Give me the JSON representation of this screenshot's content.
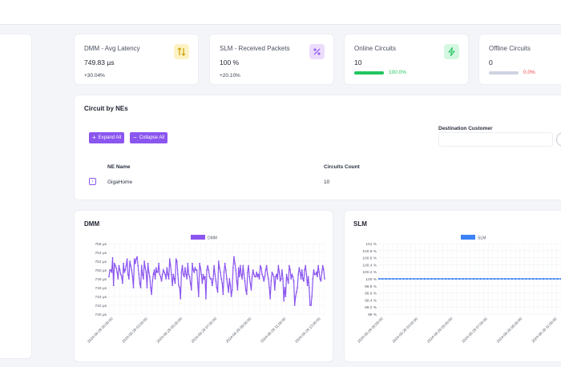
{
  "kpis": [
    {
      "title": "DMM - Avg Latency",
      "value": "749.83 µs",
      "delta": "+30.04%",
      "icon": "arrows-up-down-icon",
      "icon_bg": "#fdf2c4",
      "icon_color": "#c9a000"
    },
    {
      "title": "SLM - Received Packets",
      "value": "100 %",
      "delta": "+20.10%",
      "icon": "percent-icon",
      "icon_bg": "#ecdcfc",
      "icon_color": "#8b55ef"
    },
    {
      "title": "Online Circuits",
      "value": "10",
      "bar_label": "100.0%",
      "bar_progress": 1.0,
      "bar_color": "#22c55e",
      "label_color": "#22c55e",
      "icon": "lightning-icon",
      "icon_bg": "#d4f7e2",
      "icon_color": "#22c55e"
    },
    {
      "title": "Offline Circuits",
      "value": "0",
      "bar_label": "0.0%",
      "bar_progress": 0.0,
      "bar_color": "#cdd3e0",
      "label_color": "#ef4444"
    }
  ],
  "circuits": {
    "title": "Circuit by NEs",
    "expand_label": "Expand All",
    "collapse_label": "Collapse All",
    "destination_label": "Destination Customer",
    "columns": [
      "NE Name",
      "Circuits Count"
    ],
    "rows": [
      {
        "ne": "GigaHome",
        "count": "10"
      }
    ]
  },
  "dmm": {
    "title": "DMM",
    "chart_data": {
      "type": "line",
      "legend": "DMM",
      "color": "#8b55ef",
      "ylim": [
        740,
        756
      ],
      "yticks": [
        "756 µs",
        "754 µs",
        "752 µs",
        "750 µs",
        "748 µs",
        "746 µs",
        "744 µs",
        "742 µs",
        "740 µs"
      ],
      "xticks": [
        "2024-08-29 00:00:00",
        "2024-08-29 03:00:00",
        "2024-08-29 05:00:00",
        "2024-08-29 07:00:00",
        "2024-08-29 09:00:00",
        "2024-08-29 11:00:00",
        "2024-08-29 13:00:00"
      ],
      "series": [
        {
          "name": "DMM",
          "values": [
            748.5,
            750,
            750,
            749.5,
            752.8,
            746.5,
            751.5,
            751,
            750.5,
            749.5,
            748,
            751,
            750,
            749,
            748.5,
            747,
            751.5,
            749.5,
            750,
            751,
            752.5,
            749,
            748,
            752,
            751,
            750,
            748.5,
            746,
            752.5,
            751.5,
            752.5,
            753,
            751,
            749,
            747,
            746,
            751,
            749,
            748,
            752,
            750.5,
            749.5,
            746,
            751.5,
            749.5,
            748.5,
            746,
            744.5,
            747.5,
            749,
            750,
            748,
            750.5,
            749.5,
            749.5,
            751.5,
            749,
            748.5,
            747.5,
            749,
            750,
            749.5,
            749,
            748,
            750.5,
            749,
            748,
            752.5,
            751,
            749,
            746.5,
            749,
            748,
            747,
            752.5,
            752,
            749,
            746.5,
            746,
            743.5,
            749.5,
            751,
            749,
            748.5,
            750.5,
            749,
            748,
            751.5,
            749,
            748.5,
            747,
            745.5,
            751.5,
            750,
            749.5,
            750.5,
            750,
            750,
            747,
            744,
            751.5,
            750.5,
            749,
            747,
            749,
            748,
            748.5,
            743.5,
            750,
            751,
            750,
            748.5,
            748,
            748,
            746.5,
            748,
            751,
            749,
            747.5,
            746,
            745,
            752,
            750.5,
            749.5,
            748,
            747,
            744.5,
            749.5,
            751.5,
            750,
            748,
            746.5,
            745,
            748,
            746.5,
            744,
            745.5,
            750.5,
            753,
            751.5,
            750,
            747.5,
            745.5,
            750.5,
            748.5,
            751,
            749,
            748,
            751,
            749,
            747.5,
            745.5,
            744.5,
            749.5,
            751,
            748.5,
            747,
            745.5,
            748.5,
            750,
            749,
            748.5,
            748.5,
            749.5,
            748.5,
            749,
            748,
            751,
            750.5,
            749,
            748.5,
            747.5,
            748.5,
            750,
            751,
            749,
            748,
            746,
            743.5,
            747.5,
            749.5,
            749,
            748.5,
            745.5,
            748.5,
            749,
            748,
            751,
            749.5,
            747.5,
            748,
            750,
            748,
            743,
            746,
            744,
            749,
            748,
            747,
            751,
            750,
            748,
            749,
            748.5,
            747.5,
            742,
            744,
            745,
            746,
            749,
            750.5,
            749.5,
            748,
            750,
            748,
            747.5,
            750,
            751,
            749,
            746.5,
            748.5,
            746,
            742,
            742,
            744,
            748,
            750,
            749,
            749,
            749.5,
            748.5,
            751,
            749.5,
            748,
            747.5,
            749.5,
            751,
            750,
            748
          ]
        }
      ]
    }
  },
  "slm": {
    "title": "SLM",
    "chart_data": {
      "type": "line",
      "legend": "SLM",
      "color": "#3b82f6",
      "ylim": [
        99,
        101
      ],
      "yticks": [
        "101 %",
        "100.8 %",
        "100.6 %",
        "100.4 %",
        "100.2 %",
        "100 %",
        "99.8 %",
        "99.6 %",
        "99.4 %",
        "99.2 %",
        "99 %"
      ],
      "xticks": [
        "2024-08-29 00:00:00",
        "2024-08-29 03:00:00",
        "2024-08-29 05:00:00",
        "2024-08-29 07:00:00",
        "2024-08-29 09:00:00",
        "2024-08-29 11:00:00"
      ],
      "series": [
        {
          "name": "SLM",
          "values": [
            100,
            100,
            100,
            100,
            100,
            100,
            100,
            100,
            100,
            100,
            100,
            100,
            100,
            100,
            100,
            100,
            100,
            100,
            100,
            100,
            100,
            100,
            100,
            100,
            100,
            100,
            100,
            100,
            100,
            100,
            100,
            100,
            100,
            100,
            100,
            100,
            100,
            100,
            100,
            100,
            100,
            100,
            100,
            100,
            100,
            100,
            100,
            100,
            100,
            100,
            100,
            100,
            100
          ]
        }
      ]
    }
  }
}
